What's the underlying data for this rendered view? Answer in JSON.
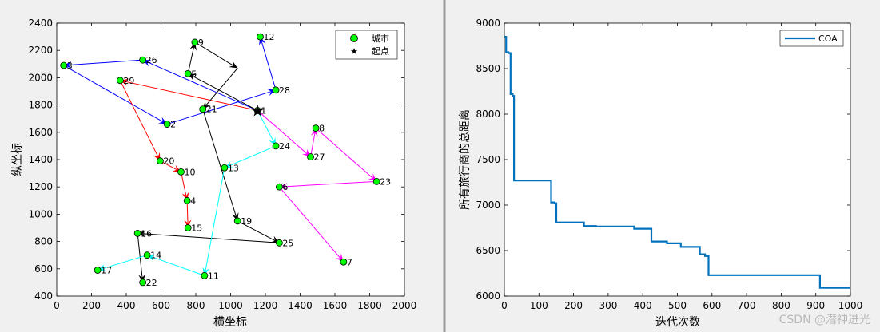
{
  "chart_data": [
    {
      "type": "scatter",
      "xlabel": "横坐标",
      "ylabel": "纵坐标",
      "xlim": [
        0,
        2000
      ],
      "ylim": [
        400,
        2400
      ],
      "x_ticks": [
        0,
        200,
        400,
        600,
        800,
        1000,
        1200,
        1400,
        1600,
        1800,
        2000
      ],
      "y_ticks": [
        400,
        600,
        800,
        1000,
        1200,
        1400,
        1600,
        1800,
        2000,
        2200,
        2400
      ],
      "legend": {
        "position": "top-right",
        "entries": [
          "城市",
          "起点"
        ]
      },
      "cities": [
        {
          "id": "1",
          "x": 1155,
          "y": 1760
        },
        {
          "id": "2",
          "x": 635,
          "y": 1660
        },
        {
          "id": "3",
          "x": 40,
          "y": 2090
        },
        {
          "id": "4",
          "x": 750,
          "y": 1100
        },
        {
          "id": "5",
          "x": 755,
          "y": 2030
        },
        {
          "id": "6",
          "x": 1280,
          "y": 1200
        },
        {
          "id": "7",
          "x": 1650,
          "y": 650
        },
        {
          "id": "8",
          "x": 1490,
          "y": 1630
        },
        {
          "id": "9",
          "x": 795,
          "y": 2260
        },
        {
          "id": "10",
          "x": 715,
          "y": 1310
        },
        {
          "id": "11",
          "x": 850,
          "y": 550
        },
        {
          "id": "12",
          "x": 1170,
          "y": 2300
        },
        {
          "id": "13",
          "x": 965,
          "y": 1340
        },
        {
          "id": "14",
          "x": 520,
          "y": 700
        },
        {
          "id": "15",
          "x": 755,
          "y": 900
        },
        {
          "id": "16",
          "x": 465,
          "y": 860
        },
        {
          "id": "17",
          "x": 235,
          "y": 590
        },
        {
          "id": "19",
          "x": 1040,
          "y": 950
        },
        {
          "id": "20",
          "x": 595,
          "y": 1390
        },
        {
          "id": "21",
          "x": 840,
          "y": 1770
        },
        {
          "id": "22",
          "x": 495,
          "y": 500
        },
        {
          "id": "23",
          "x": 1840,
          "y": 1240
        },
        {
          "id": "24",
          "x": 1260,
          "y": 1500
        },
        {
          "id": "25",
          "x": 1280,
          "y": 790
        },
        {
          "id": "26",
          "x": 495,
          "y": 2130
        },
        {
          "id": "27",
          "x": 1460,
          "y": 1420
        },
        {
          "id": "28",
          "x": 1260,
          "y": 1910
        },
        {
          "id": "29",
          "x": 365,
          "y": 1980
        }
      ],
      "start": {
        "x": 1155,
        "y": 1760
      },
      "routes": [
        {
          "color": "#0000ff",
          "path": [
            [
              1155,
              1760
            ],
            [
              495,
              2130
            ],
            [
              40,
              2090
            ],
            [
              635,
              1660
            ],
            [
              1260,
              1910
            ],
            [
              1170,
              2300
            ]
          ]
        },
        {
          "color": "#ff0000",
          "path": [
            [
              1155,
              1760
            ],
            [
              365,
              1980
            ],
            [
              595,
              1390
            ],
            [
              715,
              1310
            ],
            [
              750,
              1100
            ],
            [
              755,
              900
            ]
          ]
        },
        {
          "color": "#000000",
          "path": [
            [
              1155,
              1760
            ],
            [
              755,
              2030
            ],
            [
              795,
              2260
            ],
            [
              1040,
              2070
            ],
            [
              840,
              1770
            ],
            [
              1040,
              950
            ],
            [
              1280,
              790
            ],
            [
              465,
              860
            ],
            [
              495,
              500
            ]
          ]
        },
        {
          "color": "#00ffff",
          "path": [
            [
              1155,
              1760
            ],
            [
              1260,
              1500
            ],
            [
              965,
              1340
            ],
            [
              850,
              550
            ],
            [
              520,
              700
            ],
            [
              235,
              590
            ]
          ]
        },
        {
          "color": "#ff00ff",
          "path": [
            [
              1155,
              1760
            ],
            [
              1460,
              1420
            ],
            [
              1490,
              1630
            ],
            [
              1840,
              1240
            ],
            [
              1280,
              1200
            ],
            [
              1650,
              650
            ]
          ]
        }
      ]
    },
    {
      "type": "line",
      "xlabel": "迭代次数",
      "ylabel": "所有旅行商的总距离",
      "xlim": [
        0,
        1000
      ],
      "ylim": [
        6000,
        9000
      ],
      "x_ticks": [
        0,
        100,
        200,
        300,
        400,
        500,
        600,
        700,
        800,
        900,
        1000
      ],
      "y_ticks": [
        6000,
        6500,
        7000,
        7500,
        8000,
        8500,
        9000
      ],
      "legend": {
        "position": "top-right"
      },
      "series": [
        {
          "name": "COA",
          "color": "#0072bd",
          "x": [
            0,
            5,
            5,
            12,
            12,
            18,
            18,
            24,
            24,
            28,
            28,
            135,
            135,
            145,
            145,
            150,
            150,
            230,
            230,
            265,
            265,
            375,
            375,
            425,
            425,
            470,
            470,
            510,
            510,
            565,
            565,
            580,
            580,
            590,
            590,
            912,
            912,
            1000
          ],
          "y": [
            8850,
            8850,
            8680,
            8680,
            8670,
            8670,
            8220,
            8220,
            8200,
            8200,
            7270,
            7270,
            7030,
            7030,
            7020,
            7020,
            6810,
            6810,
            6770,
            6770,
            6765,
            6765,
            6740,
            6740,
            6600,
            6600,
            6580,
            6580,
            6540,
            6540,
            6460,
            6460,
            6440,
            6440,
            6230,
            6230,
            6090,
            6090
          ]
        }
      ]
    }
  ],
  "watermark": "CSDN @潜神进光"
}
